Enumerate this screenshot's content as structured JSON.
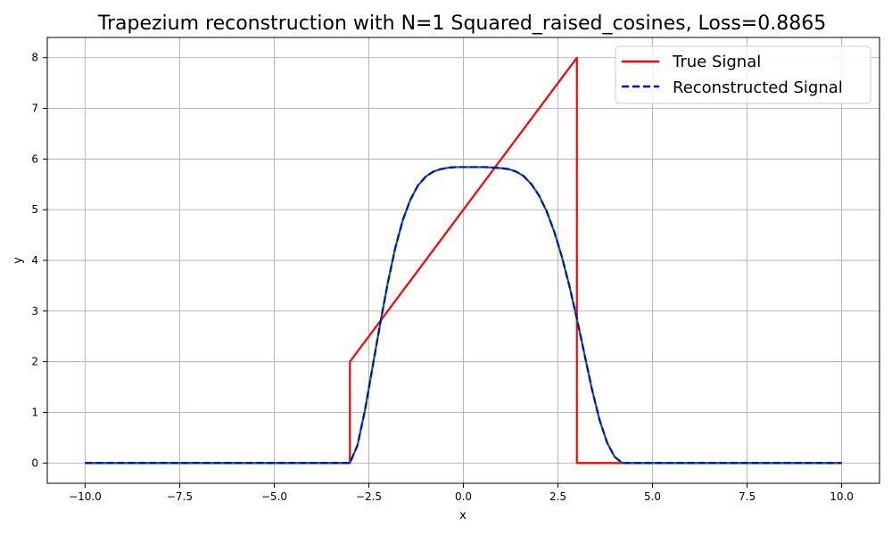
{
  "chart_data": {
    "type": "line",
    "title": "Trapezium reconstruction with N=1 Squared_raised_cosines, Loss=0.8865",
    "xlabel": "x",
    "ylabel": "y",
    "xlim": [
      -11.0,
      11.0
    ],
    "ylim": [
      -0.4,
      8.4
    ],
    "xticks": [
      -10.0,
      -7.5,
      -5.0,
      -2.5,
      0.0,
      2.5,
      5.0,
      7.5,
      10.0
    ],
    "xtick_labels": [
      "−10.0",
      "−7.5",
      "−5.0",
      "−2.5",
      "0.0",
      "2.5",
      "5.0",
      "7.5",
      "10.0"
    ],
    "yticks": [
      0,
      1,
      2,
      3,
      4,
      5,
      6,
      7,
      8
    ],
    "ytick_labels": [
      "0",
      "1",
      "2",
      "3",
      "4",
      "5",
      "6",
      "7",
      "8"
    ],
    "grid": true,
    "legend_position": "top-right",
    "series": [
      {
        "name": "True Signal",
        "color": "#ff0000",
        "style": "solid",
        "x": [
          -10,
          -3.0,
          -3.0,
          3.0,
          3.0,
          10
        ],
        "y": [
          0,
          0,
          2,
          8,
          0,
          0
        ]
      },
      {
        "name": "Reconstructed Signal",
        "color": "#0000ff",
        "overlay_color": "#008000",
        "style": "dashed",
        "x": [
          -10,
          -3.0,
          -2.8,
          -2.6,
          -2.4,
          -2.2,
          -2.0,
          -1.8,
          -1.6,
          -1.4,
          -1.2,
          -1.0,
          -0.8,
          -0.6,
          -0.4,
          -0.2,
          0.0,
          0.2,
          0.4,
          0.6,
          0.8,
          1.0,
          1.2,
          1.4,
          1.6,
          1.8,
          2.0,
          2.2,
          2.4,
          2.6,
          2.8,
          3.0,
          3.2,
          3.4,
          3.6,
          3.8,
          4.0,
          4.2,
          10
        ],
        "y": [
          0,
          0,
          0.35,
          1.05,
          1.9,
          2.75,
          3.55,
          4.25,
          4.8,
          5.2,
          5.48,
          5.65,
          5.75,
          5.8,
          5.83,
          5.84,
          5.84,
          5.84,
          5.84,
          5.84,
          5.83,
          5.82,
          5.8,
          5.75,
          5.66,
          5.5,
          5.28,
          4.97,
          4.57,
          4.08,
          3.5,
          2.85,
          2.15,
          1.45,
          0.85,
          0.4,
          0.12,
          0.0,
          0
        ]
      }
    ]
  }
}
